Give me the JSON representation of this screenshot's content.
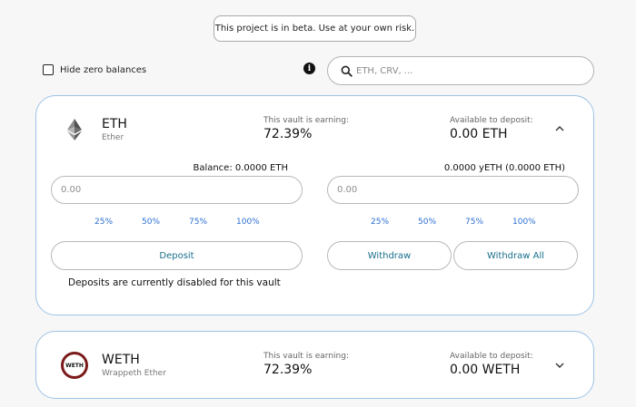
{
  "banner": {
    "text": "This project is in beta. Use at your own risk."
  },
  "filters": {
    "hide_zero_label": "Hide zero balances",
    "info_glyph": "i",
    "search_placeholder": "ETH, CRV, ...",
    "search_value": ""
  },
  "vaults": [
    {
      "symbol": "ETH",
      "name": "Ether",
      "icon": "ethereum-icon",
      "earning_label": "This vault is earning:",
      "earning_value": "72.39%",
      "available_label": "Available to deposit:",
      "available_value": "0.00 ETH",
      "expanded": true,
      "balance_text": "Balance: 0.0000 ETH",
      "share_text": "0.0000 yETH (0.0000 ETH)",
      "deposit_placeholder": "0.00",
      "withdraw_placeholder": "0.00",
      "percent_options": [
        "25%",
        "50%",
        "75%",
        "100%"
      ],
      "deposit_label": "Deposit",
      "withdraw_label": "Withdraw",
      "withdraw_all_label": "Withdraw All",
      "notice": "Deposits are currently disabled for this vault"
    },
    {
      "symbol": "WETH",
      "name": "Wrappeth Ether",
      "icon": "weth-icon",
      "icon_text": "WETH",
      "earning_label": "This vault is earning:",
      "earning_value": "72.39%",
      "available_label": "Available to deposit:",
      "available_value": "0.00 WETH",
      "expanded": false
    }
  ],
  "colors": {
    "card_border": "#9ec3e6",
    "percent_link": "#2c6fd1",
    "button_text": "#196f8c",
    "background": "#f7f7f8"
  }
}
